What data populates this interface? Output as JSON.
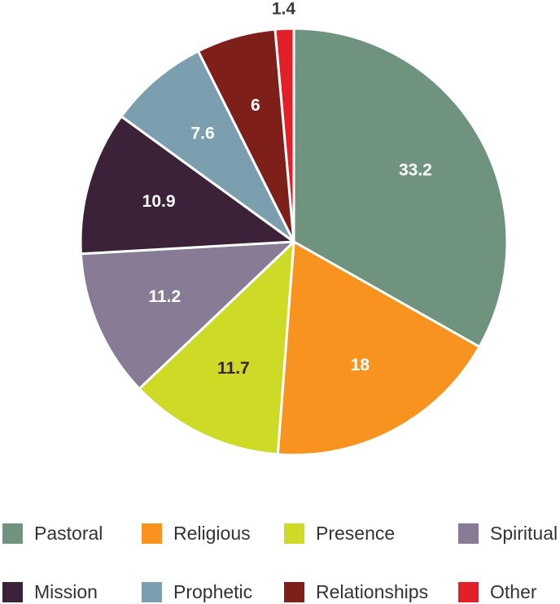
{
  "chart_data": {
    "type": "pie",
    "start_angle_deg": 0,
    "direction": "clockwise",
    "slices": [
      {
        "label": "Pastoral",
        "value": 33.2,
        "value_label": "33.2",
        "color": "#6f937e",
        "label_color": "#ffffff"
      },
      {
        "label": "Religious",
        "value": 18,
        "value_label": "18",
        "color": "#f7931e",
        "label_color": "#ffffff"
      },
      {
        "label": "Presence",
        "value": 11.7,
        "value_label": "11.7",
        "color": "#cddb26",
        "label_color": "#3a2338"
      },
      {
        "label": "Spiritual",
        "value": 11.2,
        "value_label": "11.2",
        "color": "#877b95",
        "label_color": "#ffffff"
      },
      {
        "label": "Mission",
        "value": 10.9,
        "value_label": "10.9",
        "color": "#3b2238",
        "label_color": "#ffffff"
      },
      {
        "label": "Prophetic",
        "value": 7.6,
        "value_label": "7.6",
        "color": "#7c9fb0",
        "label_color": "#ffffff"
      },
      {
        "label": "Relationships",
        "value": 6,
        "value_label": "6",
        "color": "#7f1f1a",
        "label_color": "#ffffff"
      },
      {
        "label": "Other",
        "value": 1.4,
        "value_label": "1.4",
        "color": "#e3202a",
        "label_color": "#3a3a3a"
      }
    ],
    "legend_position": "bottom"
  }
}
